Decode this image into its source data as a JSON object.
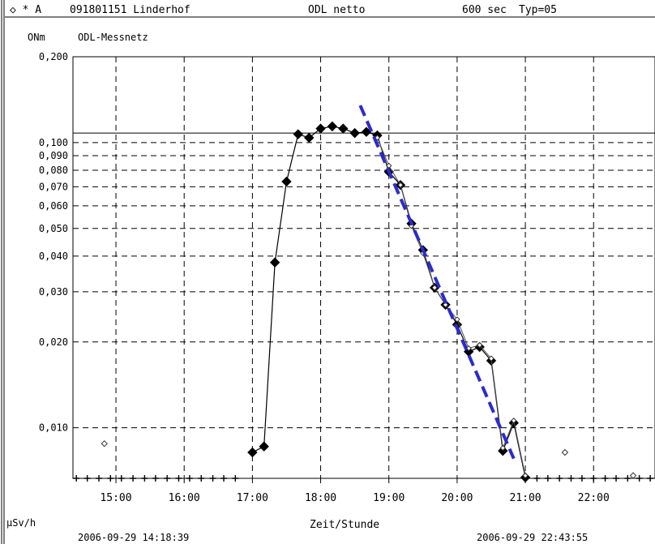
{
  "header": {
    "symbols": "◇ * A",
    "station": "091801151 Linderhof",
    "measurement": "ODL netto",
    "interval": "600 sec",
    "typ": "Typ=05"
  },
  "chart_data": {
    "type": "line",
    "title": "ODL-Messnetz",
    "y_top_label": "ONm",
    "ylabel": "µSv/h",
    "xlabel": "Zeit/Stunde",
    "y_scale": "log",
    "grid": true,
    "ylim": [
      0.00665,
      0.2
    ],
    "xlim": [
      14.37,
      22.9
    ],
    "x_tick_labels": [
      "15:00",
      "16:00",
      "17:00",
      "18:00",
      "19:00",
      "20:00",
      "21:00",
      "22:00"
    ],
    "x_tick_values": [
      15,
      16,
      17,
      18,
      19,
      20,
      21,
      22
    ],
    "y_tick_labels": [
      "0,200",
      "0,100",
      "0,090",
      "0,080",
      "0,070",
      "0,060",
      "0,050",
      "0,040",
      "0,030",
      "0,020",
      "0,010"
    ],
    "y_tick_values": [
      0.2,
      0.1,
      0.09,
      0.08,
      0.07,
      0.06,
      0.05,
      0.04,
      0.03,
      0.02,
      0.01
    ],
    "threshold_line": 0.108,
    "start_timestamp": "2006-09-29 14:18:39",
    "end_timestamp": "2006-09-29 22:43:55",
    "series": [
      {
        "color": "#000000",
        "style": "line-with-large-diamonds",
        "x": [
          17.0,
          17.17,
          17.33,
          17.5,
          17.67,
          17.83,
          18.0,
          18.17,
          18.33,
          18.5,
          18.67,
          18.83,
          19.0,
          19.17,
          19.33,
          19.5,
          19.67,
          19.83,
          20.0,
          20.17,
          20.33,
          20.5,
          20.67,
          20.83,
          21.0
        ],
        "y": [
          0.0082,
          0.0086,
          0.038,
          0.073,
          0.107,
          0.104,
          0.112,
          0.114,
          0.112,
          0.108,
          0.109,
          0.106,
          0.079,
          0.071,
          0.052,
          0.042,
          0.031,
          0.027,
          0.023,
          0.0185,
          0.0192,
          0.0172,
          0.0083,
          0.0104,
          0.0067
        ]
      },
      {
        "color": "#000000",
        "style": "line-with-small-diamonds",
        "x": [
          18.83,
          19.0,
          19.17,
          19.33,
          19.5,
          19.67,
          19.83,
          20.0,
          20.17,
          20.33,
          20.5,
          20.67,
          20.83,
          21.0
        ],
        "y": [
          0.104,
          0.083,
          0.071,
          0.051,
          0.041,
          0.031,
          0.027,
          0.024,
          0.019,
          0.0195,
          0.0175,
          0.0085,
          0.0106,
          0.0068
        ]
      },
      {
        "color": "#2b2bcc",
        "style": "dashed-trend",
        "x": [
          18.58,
          20.83
        ],
        "y": [
          0.135,
          0.0078
        ]
      },
      {
        "color": "#000000",
        "style": "open-diamond-outliers",
        "x": [
          14.83,
          21.58,
          22.58
        ],
        "y": [
          0.0088,
          0.0082,
          0.0068
        ]
      },
      {
        "color": "#000000",
        "style": "baseline-plus-markers",
        "x": [
          14.42,
          14.58,
          14.75,
          14.92,
          15.08,
          15.25,
          15.42,
          15.58,
          15.75,
          15.92,
          16.08,
          16.25,
          16.42,
          16.58,
          16.75,
          21.17,
          21.33,
          21.5,
          21.67,
          21.83,
          22.0,
          22.17,
          22.33,
          22.5,
          22.67,
          22.83
        ],
        "y": [
          0.00665,
          0.00665,
          0.00665,
          0.00665,
          0.00665,
          0.00665,
          0.00665,
          0.00665,
          0.00665,
          0.00665,
          0.00665,
          0.00665,
          0.00665,
          0.00665,
          0.00665,
          0.00665,
          0.00665,
          0.00665,
          0.00665,
          0.00665,
          0.00665,
          0.00665,
          0.00665,
          0.00665,
          0.00665,
          0.00665
        ]
      }
    ]
  }
}
